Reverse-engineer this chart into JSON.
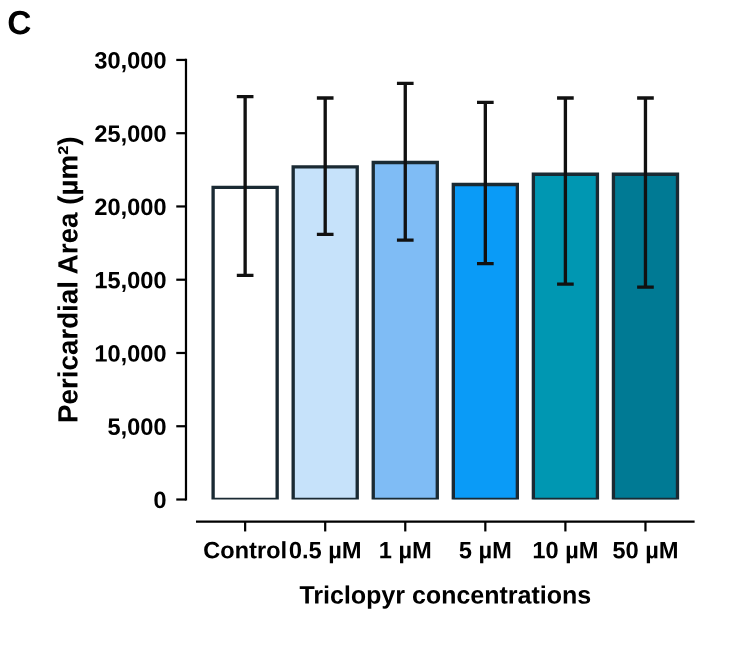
{
  "chart_data": {
    "type": "bar",
    "title": "C",
    "xlabel": "Triclopyr concentrations",
    "ylabel": "Pericardial Area (µm²)",
    "categories": [
      "Control",
      "0.5 µM",
      "1 µM",
      "5 µM",
      "10 µM",
      "50 µM"
    ],
    "values": [
      21300,
      22700,
      23000,
      21500,
      22200,
      22200
    ],
    "colors": [
      "#ffffff",
      "#c6e2fa",
      "#7fbcf5",
      "#0a9bf7",
      "#0097b2",
      "#007a94"
    ],
    "errors": [
      [
        15300,
        27500
      ],
      [
        18100,
        27400
      ],
      [
        17700,
        28400
      ],
      [
        16100,
        27100
      ],
      [
        14700,
        27400
      ],
      [
        14500,
        27400
      ]
    ],
    "ylim": [
      0,
      30000
    ],
    "yticks": [
      {
        "value": 0,
        "label": "0"
      },
      {
        "value": 5000,
        "label": "5,000"
      },
      {
        "value": 10000,
        "label": "10,000"
      },
      {
        "value": 15000,
        "label": "15,000"
      },
      {
        "value": 20000,
        "label": "20,000"
      },
      {
        "value": 25000,
        "label": "25,000"
      },
      {
        "value": 30000,
        "label": "30,000"
      }
    ],
    "grid": false,
    "legend": false
  }
}
